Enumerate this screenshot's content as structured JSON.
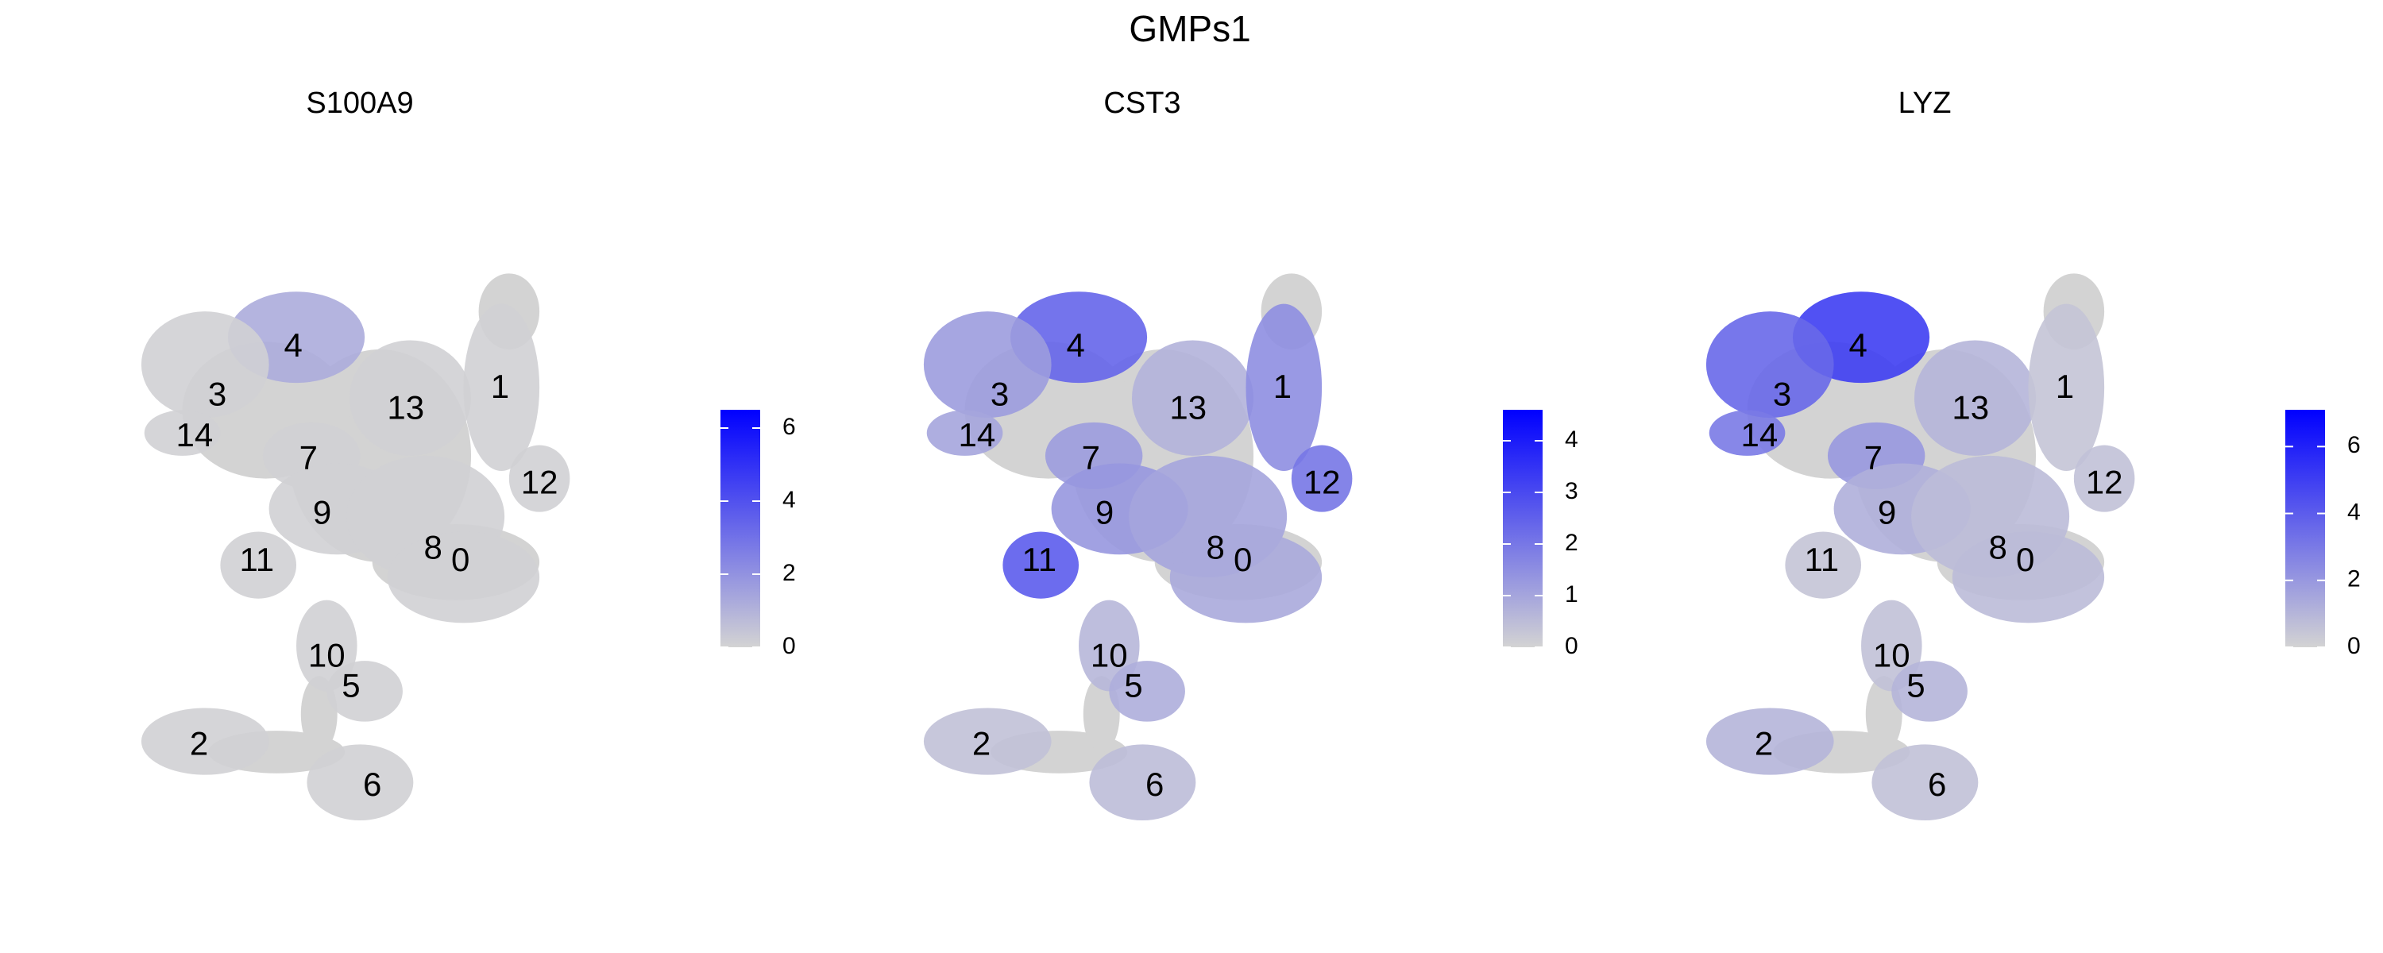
{
  "title": "GMPs1",
  "chart_data": [
    {
      "type": "scatter",
      "title": "S100A9",
      "categories": [
        "4",
        "3",
        "14",
        "7",
        "9",
        "11",
        "13",
        "1",
        "12",
        "8",
        "0",
        "10",
        "5",
        "2",
        "6"
      ],
      "values": [
        1.2,
        0.1,
        0.1,
        0.1,
        0.1,
        0.1,
        0.1,
        0.1,
        0.1,
        0.1,
        0.1,
        0.1,
        0.1,
        0.1,
        0.1
      ],
      "clim": [
        0,
        6.5
      ],
      "cticks": [
        0,
        2,
        4,
        6
      ],
      "color_low": "#d3d3d3",
      "color_high": "#0000ff"
    },
    {
      "type": "scatter",
      "title": "CST3",
      "categories": [
        "4",
        "3",
        "14",
        "7",
        "9",
        "11",
        "13",
        "1",
        "12",
        "8",
        "0",
        "10",
        "5",
        "2",
        "6"
      ],
      "values": [
        2.4,
        1.2,
        1.0,
        1.2,
        1.3,
        2.6,
        0.7,
        1.5,
        2.0,
        1.0,
        0.9,
        0.6,
        0.8,
        0.4,
        0.5
      ],
      "clim": [
        0,
        4.6
      ],
      "cticks": [
        0,
        1,
        2,
        3,
        4
      ],
      "color_low": "#d3d3d3",
      "color_high": "#0000ff"
    },
    {
      "type": "scatter",
      "title": "LYZ",
      "categories": [
        "4",
        "3",
        "14",
        "7",
        "9",
        "11",
        "13",
        "1",
        "12",
        "8",
        "0",
        "10",
        "5",
        "2",
        "6"
      ],
      "values": [
        5.0,
        3.6,
        3.0,
        2.0,
        1.2,
        0.5,
        1.0,
        0.5,
        0.6,
        0.8,
        0.8,
        0.6,
        1.0,
        1.0,
        0.6
      ],
      "clim": [
        0,
        7.1
      ],
      "cticks": [
        0,
        2,
        4,
        6
      ],
      "color_low": "#d3d3d3",
      "color_high": "#0000ff"
    }
  ]
}
